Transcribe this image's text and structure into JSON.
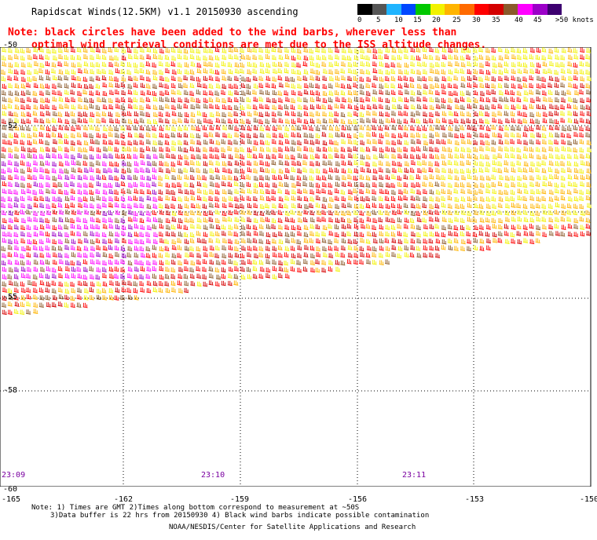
{
  "title": "Rapidscat Winds(12.5KM) v1.1 20150930 ascending",
  "note_line1": "Note: black circles have been added to the wind barbs, wherever less than",
  "note_line2": "optimal wind retrieval conditions are met due to the ISS altitude changes.",
  "colorbar": {
    "labels": [
      "0",
      "5",
      "10",
      "15",
      "20",
      "25",
      "30",
      "35",
      "40",
      "45",
      ">50 knots"
    ],
    "colors": [
      "#000000",
      "#555555",
      "#1fb4ff",
      "#0047ff",
      "#00c800",
      "#f2f200",
      "#ffb400",
      "#ff6a00",
      "#ff0000",
      "#d40000",
      "#8b5a2b",
      "#ff00ff",
      "#9b00c8",
      "#3d0070"
    ]
  },
  "lat_labels": [
    "-50",
    "-52",
    "-55",
    "-58",
    "-60"
  ],
  "lon_labels": [
    "-165",
    "-162",
    "-159",
    "-156",
    "-153",
    "-150"
  ],
  "time_labels": [
    "23:09",
    "23:10",
    "23:11"
  ],
  "footnote_line1": "Note: 1) Times are GMT 2)Times along bottom correspond to measurement at ~50S",
  "footnote_line2": "3)Data buffer is 22 hrs from 20150930 4) Black wind barbs indicate possible contamination",
  "credit": "NOAA/NESDIS/Center for Satellite Applications and Research"
}
